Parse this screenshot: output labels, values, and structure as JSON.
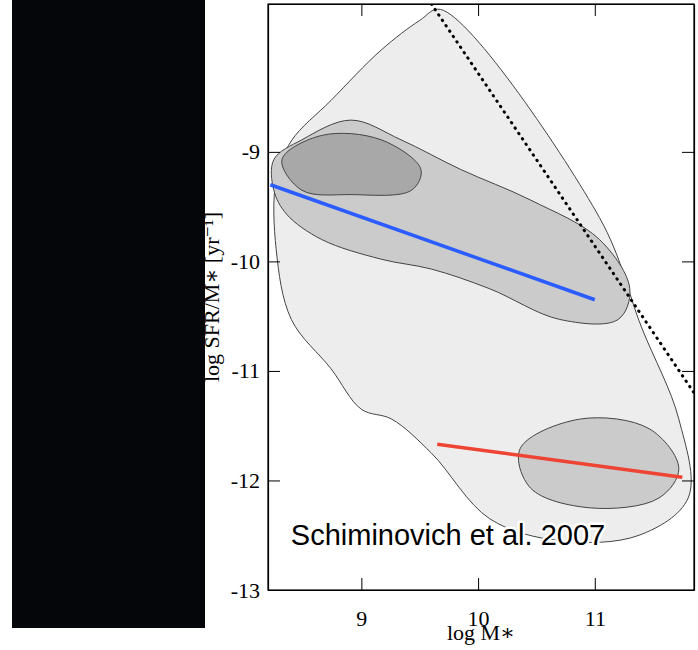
{
  "chart_data": {
    "type": "contour",
    "x_label": "log M∗",
    "y_label": "log SFR/M∗ [yr⁻¹]",
    "annotation": "Schiminovich et al. 2007",
    "xlim": [
      8.2,
      11.85
    ],
    "ylim": [
      -13,
      -7.65
    ],
    "xticks": [
      9,
      10,
      11
    ],
    "yticks": [
      -9,
      -10,
      -11,
      -12,
      -13
    ],
    "contours": [
      {
        "level": 1,
        "x": [
          9.68,
          11.04,
          11.4,
          11.72,
          11.8,
          11.38,
          10.7,
          10.1,
          9.6,
          9.26,
          9.0,
          8.74,
          8.4,
          8.27,
          8.27,
          8.4,
          8.74,
          9.17,
          9.5
        ],
        "y": [
          -7.7,
          -9.6,
          -10.6,
          -11.44,
          -12.16,
          -12.5,
          -12.55,
          -12.35,
          -11.75,
          -11.44,
          -11.35,
          -10.98,
          -10.53,
          -9.89,
          -9.25,
          -8.9,
          -8.53,
          -8.07,
          -7.8
        ]
      },
      {
        "level": 2,
        "x": [
          8.25,
          8.49,
          8.91,
          9.34,
          9.85,
          10.45,
          11.04,
          11.3,
          11.2,
          10.7,
          10.1,
          9.6,
          9.17,
          8.66,
          8.36,
          8.25
        ],
        "y": [
          -9.07,
          -8.89,
          -8.71,
          -8.89,
          -9.16,
          -9.44,
          -9.8,
          -10.25,
          -10.53,
          -10.53,
          -10.25,
          -10.07,
          -9.98,
          -9.8,
          -9.57,
          -9.35
        ]
      },
      {
        "level": 2,
        "x": [
          10.36,
          10.87,
          11.47,
          11.72,
          11.55,
          10.96,
          10.45
        ],
        "y": [
          -11.71,
          -11.44,
          -11.53,
          -11.89,
          -12.16,
          -12.25,
          -12.07
        ]
      },
      {
        "level": 3,
        "x": [
          8.32,
          8.66,
          9.17,
          9.51,
          9.43,
          8.91,
          8.49
        ],
        "y": [
          -9.07,
          -8.85,
          -8.89,
          -9.16,
          -9.35,
          -9.39,
          -9.35
        ]
      }
    ],
    "series": [
      {
        "color": "#2b5cff",
        "line_style": "solid",
        "x": [
          8.22,
          11.0
        ],
        "y": [
          -9.3,
          -10.35
        ]
      },
      {
        "color": "#ee4433",
        "line_style": "solid",
        "x": [
          9.65,
          11.75
        ],
        "y": [
          -11.67,
          -11.97
        ]
      },
      {
        "color": "#000000",
        "line_style": "dotted",
        "x": [
          9.6,
          11.85
        ],
        "y": [
          -7.65,
          -11.2
        ]
      }
    ]
  }
}
